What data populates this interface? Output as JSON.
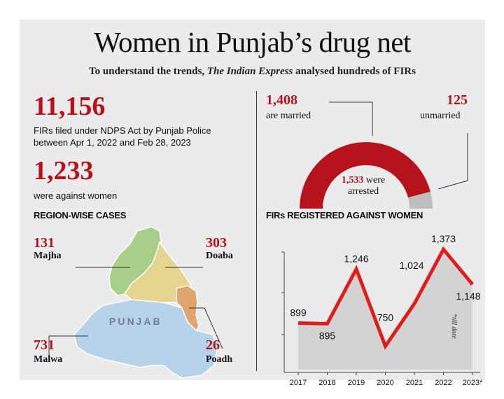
{
  "header": {
    "title": "Women in Punjab’s drug net",
    "subtitle_before": "To understand the trends, ",
    "subtitle_italic": "The Indian Express",
    "subtitle_after": " analysed hundreds of FIRs"
  },
  "stats": {
    "firs_total": "11,156",
    "firs_desc_line1": "FIRs filed under NDPS Act by Punjab Police",
    "firs_desc_line2": "between Apr 1, 2022 and Feb 28, 2023",
    "women_total": "1,233",
    "women_desc": "were against women"
  },
  "regions": {
    "heading": "REGION-WISE CASES",
    "map_label": "PUNJAB",
    "items": [
      {
        "name": "Majha",
        "value": "131"
      },
      {
        "name": "Doaba",
        "value": "303"
      },
      {
        "name": "Malwa",
        "value": "731"
      },
      {
        "name": "Poadh",
        "value": "26"
      }
    ],
    "colors": {
      "majha": "#a7cf8a",
      "doaba": "#e5d58e",
      "malwa": "#b6d3ea",
      "poadh": "#e0a66f"
    }
  },
  "marital": {
    "married_value": "1,408",
    "married_label": "are married",
    "unmarried_value": "125",
    "unmarried_label": "unmarried",
    "arrested_value": "1,533",
    "arrested_word": "were",
    "arrested_label": "arrested",
    "colors": {
      "married": "#b5121b",
      "unmarried": "#bdbdbd"
    }
  },
  "chart_data": {
    "type": "line",
    "title": "FIRs REGISTERED AGAINST WOMEN",
    "categories": [
      "2017",
      "2018",
      "2019",
      "2020",
      "2021",
      "2022",
      "2023*"
    ],
    "series": [
      {
        "values": [
          899,
          895,
          1246,
          750,
          1024,
          1373,
          1148
        ]
      }
    ],
    "data_labels": [
      "899",
      "895",
      "1,246",
      "750",
      "1,024",
      "1,373",
      "1,148"
    ],
    "note": "*till date",
    "ylim": [
      600,
      1500
    ],
    "grid": false,
    "colors": {
      "line": "#e01d1d",
      "area": "#d3d3d3"
    }
  }
}
